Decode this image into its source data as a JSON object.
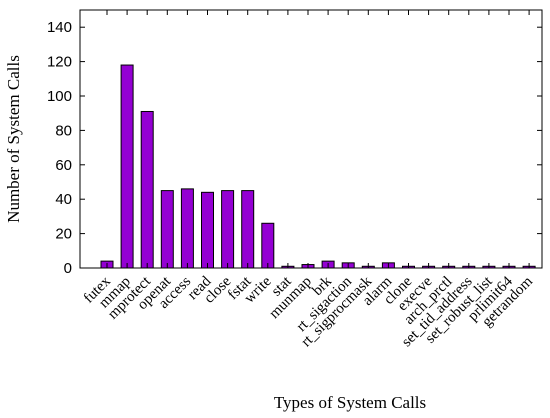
{
  "chart_data": {
    "type": "bar",
    "xlabel": "Types of System Calls",
    "ylabel": "Number of System Calls",
    "ylim": [
      0,
      150
    ],
    "y_ticks": [
      0,
      20,
      40,
      60,
      80,
      100,
      120,
      140
    ],
    "grid": false,
    "bar_color": "#9400d3",
    "bar_edge_color": "#000000",
    "categories": [
      "futex",
      "mmap",
      "mprotect",
      "openat",
      "access",
      "read",
      "close",
      "fstat",
      "write",
      "stat",
      "munmap",
      "brk",
      "rt_sigaction",
      "rt_sigprocmask",
      "alarm",
      "clone",
      "execve",
      "arch_prctl",
      "set_tid_address",
      "set_robust_list",
      "prlimit64",
      "getrandom"
    ],
    "values": [
      4,
      118,
      91,
      45,
      46,
      44,
      45,
      45,
      26,
      1,
      2,
      4,
      3,
      1,
      3,
      1,
      1,
      1,
      1,
      1,
      1,
      1
    ]
  }
}
